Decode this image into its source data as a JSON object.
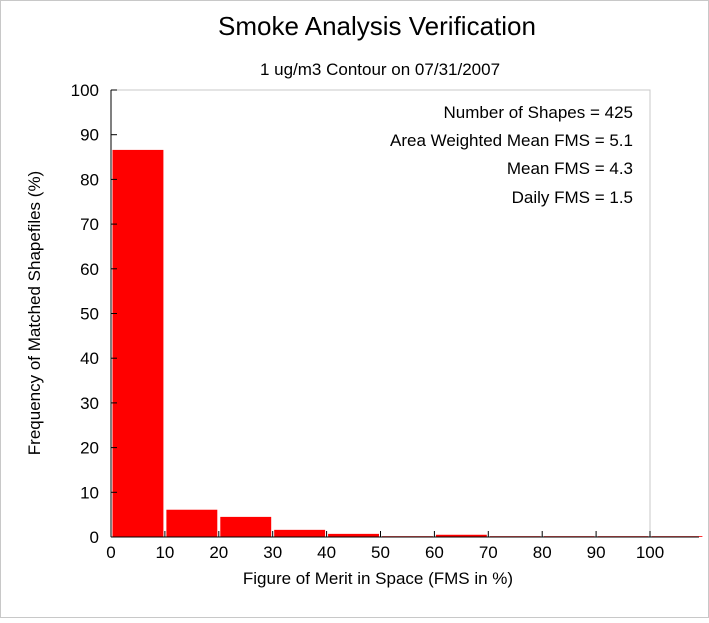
{
  "chart_data": {
    "type": "bar",
    "title": "Smoke Analysis Verification",
    "subtitle": "1 ug/m3 Contour on 07/31/2007",
    "xlabel": "Figure of Merit in Space (FMS in %)",
    "ylabel": "Frequency of Matched Shapefiles (%)",
    "xlim": [
      0,
      110
    ],
    "ylim": [
      0,
      100
    ],
    "x_ticks": [
      0,
      10,
      20,
      30,
      40,
      50,
      60,
      70,
      80,
      90,
      100
    ],
    "y_ticks": [
      0,
      10,
      20,
      30,
      40,
      50,
      60,
      70,
      80,
      90,
      100
    ],
    "bin_width": 10,
    "bins": [
      {
        "x0": 0,
        "x1": 10,
        "value": 86.6
      },
      {
        "x0": 10,
        "x1": 20,
        "value": 6.1
      },
      {
        "x0": 20,
        "x1": 30,
        "value": 4.5
      },
      {
        "x0": 30,
        "x1": 40,
        "value": 1.6
      },
      {
        "x0": 40,
        "x1": 50,
        "value": 0.7
      },
      {
        "x0": 50,
        "x1": 60,
        "value": 0.0
      },
      {
        "x0": 60,
        "x1": 70,
        "value": 0.5
      },
      {
        "x0": 70,
        "x1": 80,
        "value": 0.0
      },
      {
        "x0": 80,
        "x1": 90,
        "value": 0.0
      },
      {
        "x0": 90,
        "x1": 100,
        "value": 0.0
      },
      {
        "x0": 100,
        "x1": 110,
        "value": 0.0
      }
    ],
    "bar_color": "#ff0000",
    "annotations": [
      "Number of Shapes = 425",
      "Area Weighted Mean FMS = 5.1",
      "Mean FMS = 4.3",
      "Daily FMS = 1.5"
    ],
    "grid": false
  }
}
